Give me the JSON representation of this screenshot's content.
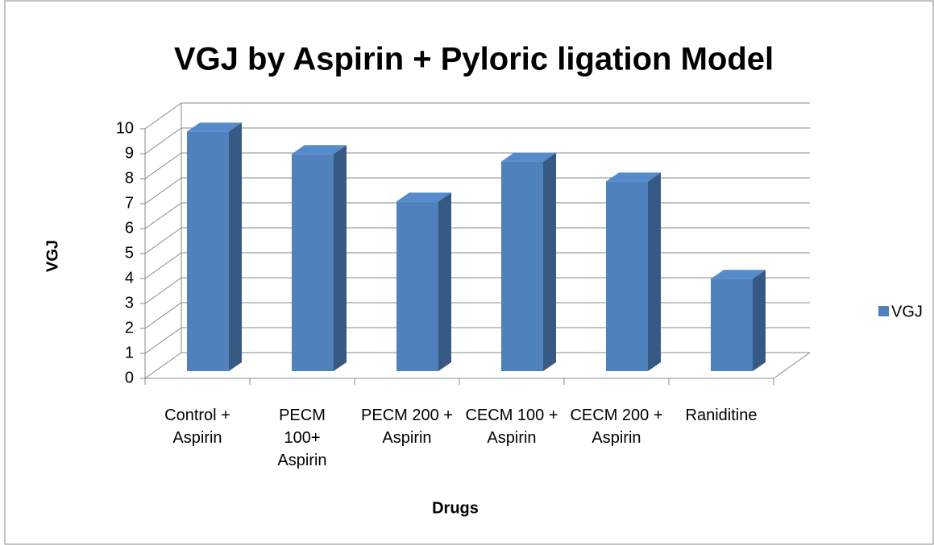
{
  "chart_data": {
    "type": "bar3d",
    "title": "VGJ by Aspirin + Pyloric ligation Model",
    "x_label": "Drugs",
    "y_label": "VGJ",
    "categories": [
      "Control + Aspirin",
      "PECM 100+ Aspirin",
      "PECM 200 + Aspirin",
      "CECM 100 + Aspirin",
      "CECM 200 + Aspirin",
      "Raniditine"
    ],
    "series": [
      {
        "name": "VGJ",
        "color": "#4f81bd",
        "values": [
          9.6,
          8.7,
          6.8,
          8.4,
          7.6,
          3.7
        ]
      }
    ],
    "ylim": [
      0,
      10
    ],
    "yticks": [
      0,
      1,
      2,
      3,
      4,
      5,
      6,
      7,
      8,
      9,
      10
    ],
    "grid": true,
    "legend": "right"
  }
}
